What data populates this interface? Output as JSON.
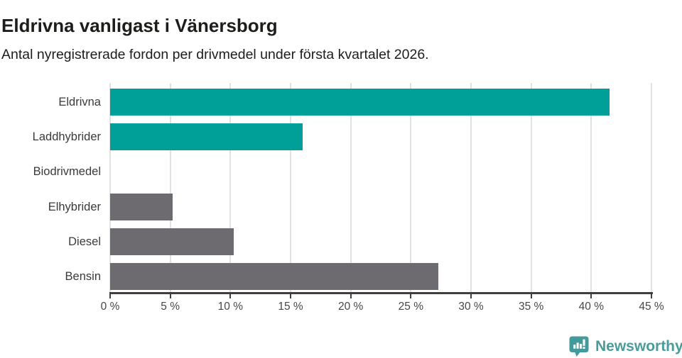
{
  "header": {
    "title": "Eldrivna vanligast i Vänersborg",
    "subtitle": "Antal nyregistrerade fordon per drivmedel under första kvartalet 2026."
  },
  "chart_data": {
    "type": "bar",
    "orientation": "horizontal",
    "title": "Eldrivna vanligast i Vänersborg",
    "subtitle": "Antal nyregistrerade fordon per drivmedel under första kvartalet 2026.",
    "categories": [
      "Eldrivna",
      "Laddhybrider",
      "Biodrivmedel",
      "Elhybrider",
      "Diesel",
      "Bensin"
    ],
    "values": [
      41.5,
      16.0,
      0,
      5.2,
      10.3,
      27.3
    ],
    "unit": "%",
    "xlim": [
      0,
      45
    ],
    "x_ticks": [
      0,
      5,
      10,
      15,
      20,
      25,
      30,
      35,
      40,
      45
    ],
    "tick_suffix": " %",
    "bar_colors": [
      "#00a099",
      "#00a099",
      "#6e6b70",
      "#6e6b70",
      "#6e6b70",
      "#6e6b70"
    ],
    "grid": true,
    "legend": false,
    "xlabel": "",
    "ylabel": ""
  },
  "footer": {
    "brand": "Newsworthy",
    "icon": "newsworthy-logo-icon"
  },
  "colors": {
    "highlight_teal": "#00a099",
    "neutral_gray": "#6e6b70",
    "grid": "#e2e2e2",
    "axis": "#3f3f3f",
    "title_text": "#1d1d1b",
    "tick_label": "#474747",
    "category_label": "#3a3a3a",
    "brand": "#4a9b9b"
  }
}
